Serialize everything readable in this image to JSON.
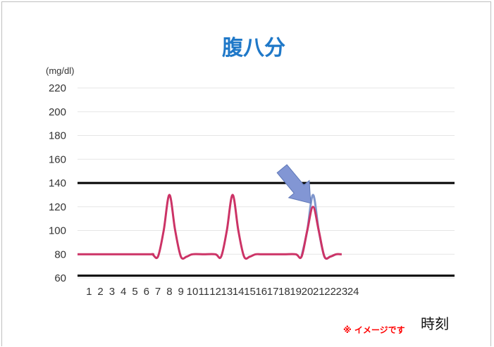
{
  "chart_data": {
    "type": "line",
    "title": "腹八分",
    "ylabel": "(mg/dl)",
    "xlabel": "時刻",
    "note": "※ イメージです",
    "ylim": [
      60,
      220
    ],
    "yticks": [
      60,
      80,
      100,
      120,
      140,
      160,
      180,
      200,
      220
    ],
    "xticks": [
      "1",
      "2",
      "3",
      "4",
      "5",
      "6",
      "7",
      "8",
      "9",
      "10",
      "11",
      "12",
      "13",
      "14",
      "15",
      "16",
      "17",
      "18",
      "19",
      "20",
      "21",
      "22",
      "23",
      "24"
    ],
    "reference_lines": [
      140,
      62
    ],
    "series": [
      {
        "color": "#cc3366",
        "x": [
          0,
          6,
          6.5,
          7,
          7.5,
          8,
          8.5,
          9,
          9.5,
          10,
          11,
          12,
          12.5,
          13,
          13.5,
          14,
          14.5,
          15,
          15.5,
          16,
          17,
          18,
          19,
          19.5,
          20,
          20.5,
          21,
          21.5,
          22,
          22.5,
          23
        ],
        "y": [
          80,
          80,
          80,
          78,
          100,
          130,
          100,
          78,
          78,
          80,
          80,
          80,
          78,
          100,
          130,
          100,
          78,
          78,
          80,
          80,
          80,
          80,
          80,
          78,
          100,
          120,
          100,
          78,
          78,
          80,
          80
        ]
      },
      {
        "color": "#7f96cc",
        "x": [
          19.5,
          20,
          20.5,
          21,
          21.5,
          22,
          22.5
        ],
        "y": [
          78,
          100,
          130,
          100,
          78,
          78,
          80
        ]
      }
    ],
    "arrow": {
      "from": [
        17.8,
        152
      ],
      "to": [
        20.3,
        123
      ],
      "color": "#8296d4"
    },
    "colors": {
      "title": "#1f78c8",
      "reference": "#000000",
      "grid": "#e6e6e6"
    }
  }
}
